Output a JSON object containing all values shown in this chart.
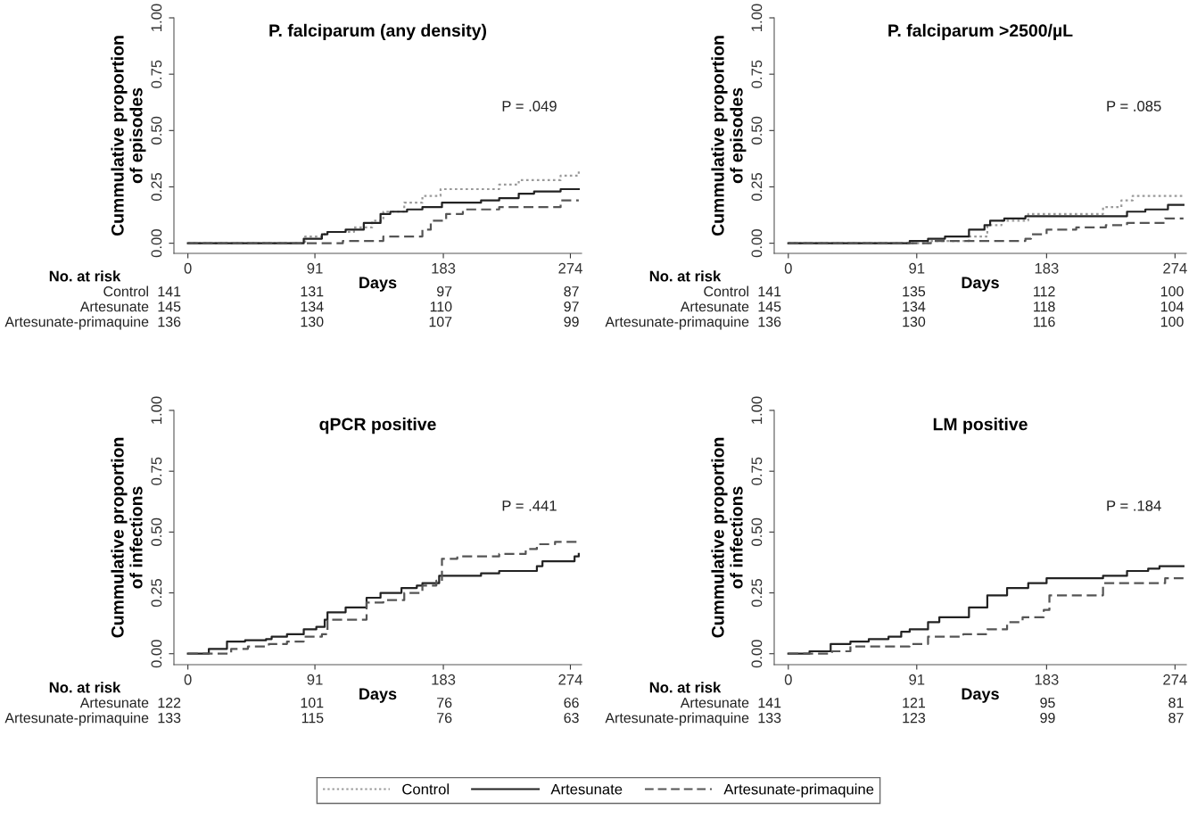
{
  "chart_data": [
    {
      "type": "step",
      "title": "P. falciparum (any density)",
      "xlabel": "Days",
      "ylabel": "Cummulative proportion\nof episodes",
      "xlim": [
        -10,
        282
      ],
      "ylim": [
        -0.045,
        1.0
      ],
      "xticks": [
        0,
        91,
        183,
        274
      ],
      "yticks": [
        {
          "value": 0,
          "label": "0.00"
        },
        {
          "value": 0.25,
          "label": "0.25"
        },
        {
          "value": 0.5,
          "label": "0.50"
        },
        {
          "value": 0.75,
          "label": "0.75"
        },
        {
          "value": 1,
          "label": "1.00"
        }
      ],
      "legend": "bottom",
      "series": [
        {
          "name": "Control",
          "color": "#9a9a9a",
          "line_style": "dotted",
          "x": [
            0,
            54,
            84,
            98,
            119,
            132,
            140,
            155,
            168,
            181,
            223,
            237,
            267,
            280
          ],
          "values": [
            0,
            0.0,
            0.03,
            0.05,
            0.07,
            0.1,
            0.14,
            0.18,
            0.21,
            0.24,
            0.26,
            0.28,
            0.3,
            0.32
          ]
        },
        {
          "name": "Artesunate",
          "color": "#222222",
          "line_style": "solid",
          "x": [
            0,
            83,
            96,
            100,
            113,
            126,
            138,
            145,
            157,
            168,
            182,
            210,
            223,
            237,
            248,
            267,
            280
          ],
          "values": [
            0,
            0.02,
            0.04,
            0.05,
            0.06,
            0.09,
            0.13,
            0.14,
            0.15,
            0.16,
            0.18,
            0.19,
            0.2,
            0.22,
            0.23,
            0.24,
            0.24
          ]
        },
        {
          "name": "Artesunate-primaquine",
          "color": "#555555",
          "line_style": "dashed",
          "x": [
            0,
            111,
            140,
            168,
            174,
            185,
            197,
            223,
            267,
            280
          ],
          "values": [
            0,
            0.01,
            0.03,
            0.06,
            0.1,
            0.13,
            0.15,
            0.16,
            0.19,
            0.19
          ]
        }
      ],
      "annotations": [
        "P = .049",
        "No. at risk",
        "Control",
        "141",
        "131",
        "97",
        "87",
        "Artesunate",
        "145",
        "134",
        "110",
        "97",
        "Artesunate-primaquine",
        "136",
        "130",
        "107",
        "99"
      ]
    },
    {
      "type": "step",
      "title": "P. falciparum >2500/µL",
      "xlabel": "Days",
      "ylabel": "Cummulative proportion\nof episodes",
      "xlim": [
        -10,
        282
      ],
      "ylim": [
        -0.045,
        1.0
      ],
      "xticks": [
        0,
        91,
        183,
        274
      ],
      "yticks": [
        {
          "value": 0,
          "label": "0.00"
        },
        {
          "value": 0.25,
          "label": "0.25"
        },
        {
          "value": 0.5,
          "label": "0.50"
        },
        {
          "value": 0.75,
          "label": "0.75"
        },
        {
          "value": 1,
          "label": "1.00"
        }
      ],
      "series": [
        {
          "color": "#9a9a9a",
          "line_style": "dotted",
          "x": [
            0,
            99,
            128,
            141,
            151,
            170,
            223,
            236,
            244,
            280
          ],
          "values": [
            0,
            0.01,
            0.03,
            0.08,
            0.1,
            0.13,
            0.16,
            0.19,
            0.21,
            0.21
          ]
        },
        {
          "color": "#222222",
          "line_style": "solid",
          "x": [
            0,
            86,
            99,
            111,
            128,
            139,
            143,
            153,
            168,
            240,
            253,
            269,
            280
          ],
          "values": [
            0,
            0.01,
            0.02,
            0.03,
            0.06,
            0.08,
            0.1,
            0.11,
            0.12,
            0.14,
            0.15,
            0.17,
            0.17
          ]
        },
        {
          "color": "#555555",
          "line_style": "dashed",
          "x": [
            0,
            101,
            168,
            172,
            183,
            204,
            225,
            240,
            267,
            280
          ],
          "values": [
            0,
            0.01,
            0.02,
            0.04,
            0.06,
            0.07,
            0.08,
            0.09,
            0.11,
            0.11
          ]
        }
      ],
      "annotations": [
        "P = .085",
        "No. at risk",
        "Control",
        "141",
        "135",
        "112",
        "100",
        "Artesunate",
        "145",
        "134",
        "118",
        "104",
        "Artesunate-primaquine",
        "136",
        "130",
        "116",
        "100"
      ]
    },
    {
      "type": "step",
      "title": "qPCR positive",
      "xlabel": "Days",
      "ylabel": "Cummulative proportion\nof infections",
      "xlim": [
        -10,
        282
      ],
      "ylim": [
        -0.045,
        1.0
      ],
      "xticks": [
        0,
        91,
        183,
        274
      ],
      "yticks": [
        {
          "value": 0,
          "label": "0.00"
        },
        {
          "value": 0.25,
          "label": "0.25"
        },
        {
          "value": 0.5,
          "label": "0.50"
        },
        {
          "value": 0.75,
          "label": "0.75"
        },
        {
          "value": 1,
          "label": "1.00"
        }
      ],
      "series": [
        {
          "color": "#222222",
          "line_style": "solid",
          "x": [
            0,
            15,
            28,
            41,
            56,
            60,
            71,
            83,
            92,
            98,
            100,
            113,
            128,
            138,
            153,
            164,
            168,
            180,
            210,
            223,
            250,
            254,
            277,
            280
          ],
          "values": [
            0,
            0.02,
            0.05,
            0.055,
            0.06,
            0.07,
            0.08,
            0.1,
            0.11,
            0.14,
            0.17,
            0.19,
            0.23,
            0.25,
            0.27,
            0.28,
            0.29,
            0.32,
            0.33,
            0.34,
            0.36,
            0.38,
            0.4,
            0.41
          ]
        },
        {
          "color": "#555555",
          "line_style": "dashed",
          "x": [
            0,
            31,
            43,
            58,
            71,
            83,
            96,
            100,
            128,
            140,
            155,
            168,
            178,
            182,
            193,
            223,
            242,
            250,
            263,
            280
          ],
          "values": [
            0,
            0.02,
            0.03,
            0.04,
            0.05,
            0.07,
            0.08,
            0.14,
            0.21,
            0.22,
            0.25,
            0.28,
            0.3,
            0.39,
            0.4,
            0.41,
            0.43,
            0.45,
            0.46,
            0.46
          ]
        }
      ],
      "annotations": [
        "P = .441",
        "No. at risk",
        "Artesunate",
        "122",
        "101",
        "76",
        "66",
        "Artesunate-primaquine",
        "133",
        "115",
        "76",
        "63"
      ]
    },
    {
      "type": "step",
      "title": "LM positive",
      "xlabel": "Days",
      "ylabel": "Cummulative proportion\nof infections",
      "xlim": [
        -10,
        282
      ],
      "ylim": [
        -0.045,
        1.0
      ],
      "xticks": [
        0,
        91,
        183,
        274
      ],
      "yticks": [
        {
          "value": 0,
          "label": "0.00"
        },
        {
          "value": 0.25,
          "label": "0.25"
        },
        {
          "value": 0.5,
          "label": "0.50"
        },
        {
          "value": 0.75,
          "label": "0.75"
        },
        {
          "value": 1,
          "label": "1.00"
        }
      ],
      "series": [
        {
          "color": "#222222",
          "line_style": "solid",
          "x": [
            0,
            15,
            30,
            44,
            57,
            71,
            80,
            86,
            99,
            107,
            128,
            141,
            155,
            170,
            183,
            210,
            223,
            240,
            255,
            263,
            280
          ],
          "values": [
            0,
            0.01,
            0.04,
            0.05,
            0.06,
            0.07,
            0.09,
            0.1,
            0.13,
            0.15,
            0.19,
            0.24,
            0.27,
            0.29,
            0.31,
            0.31,
            0.32,
            0.34,
            0.35,
            0.36,
            0.36
          ]
        },
        {
          "color": "#555555",
          "line_style": "dashed",
          "x": [
            0,
            31,
            44,
            86,
            99,
            124,
            141,
            155,
            166,
            181,
            185,
            223,
            267,
            280
          ],
          "values": [
            0,
            0.01,
            0.03,
            0.04,
            0.07,
            0.08,
            0.1,
            0.13,
            0.15,
            0.18,
            0.24,
            0.29,
            0.31,
            0.31
          ]
        }
      ],
      "annotations": [
        "P = .184",
        "No. at risk",
        "Artesunate",
        "141",
        "121",
        "95",
        "81",
        "Artesunate-primaquine",
        "133",
        "123",
        "99",
        "87"
      ]
    }
  ]
}
